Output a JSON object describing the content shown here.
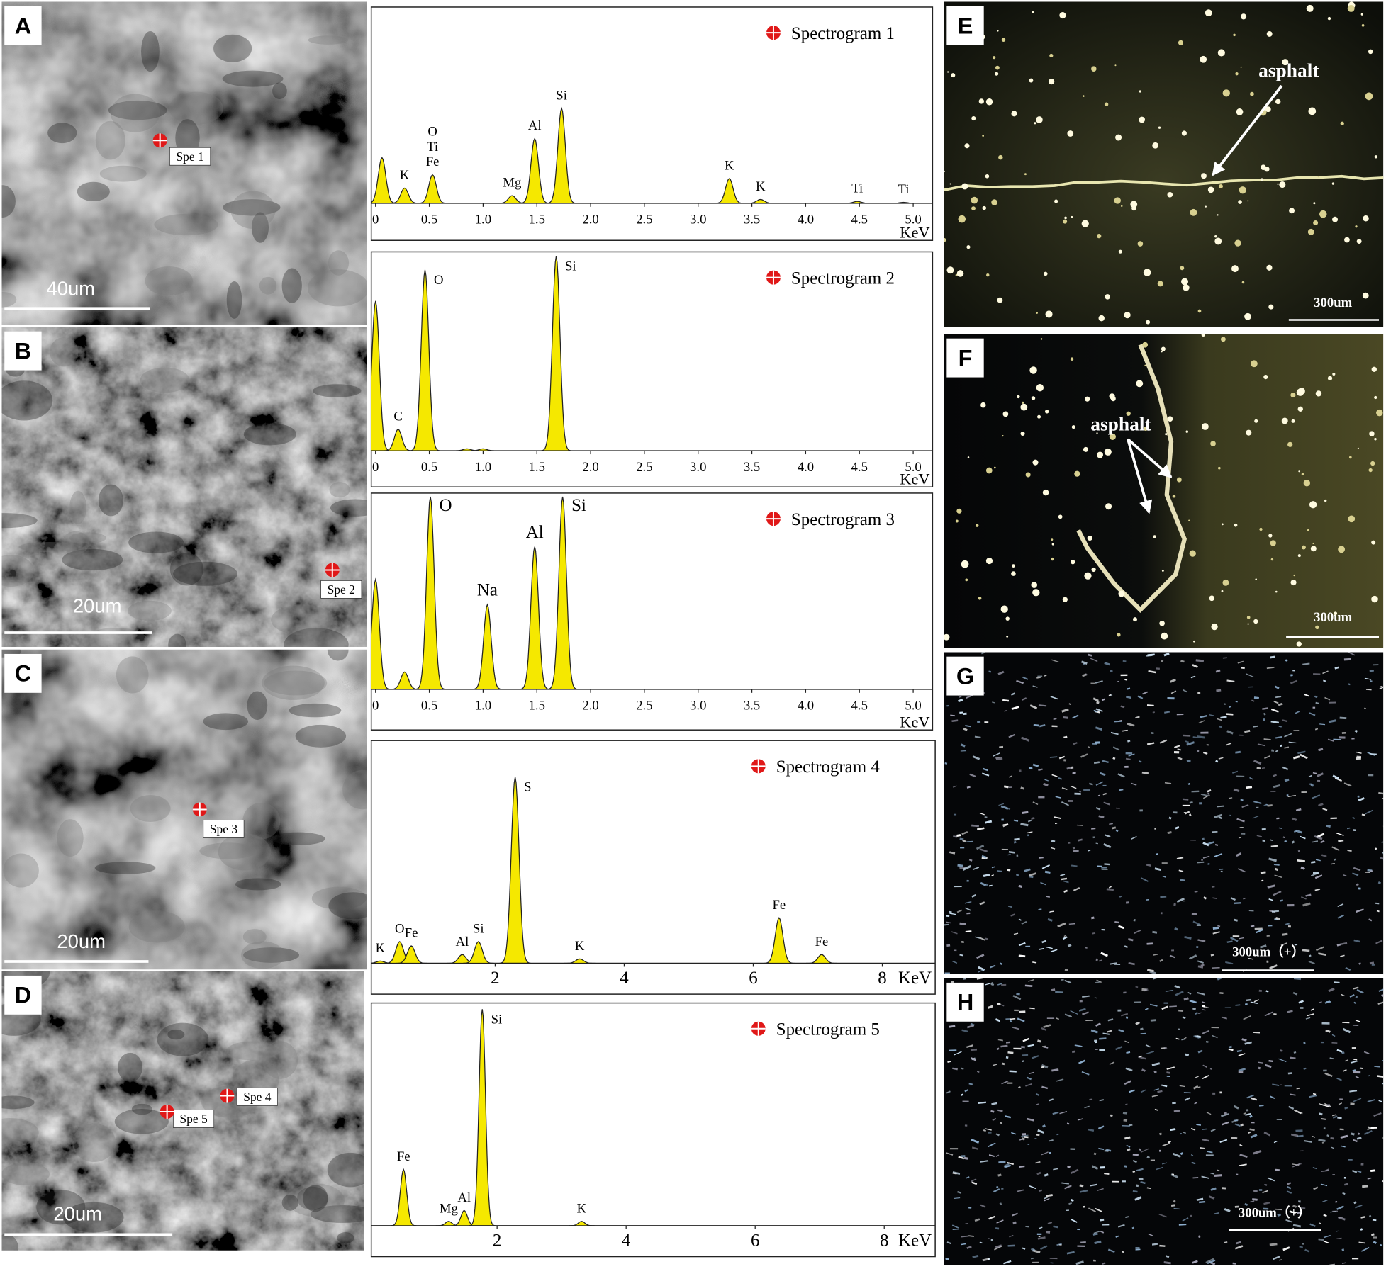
{
  "chart_data": [
    {
      "type": "spectrum",
      "title": "Spectrogram 1",
      "x_label": "KeV",
      "xlim": [
        -0.04,
        5.18
      ],
      "ylim": [
        0,
        100
      ],
      "xticks": [
        0,
        0.5,
        {
          "value": 1,
          "label": "1.0"
        },
        1.5,
        {
          "value": 2,
          "label": "2.0"
        },
        2.5,
        {
          "value": 3,
          "label": "3.0"
        },
        3.5,
        {
          "value": 4,
          "label": "4.0"
        },
        4.5,
        {
          "value": 5,
          "label": "5.0"
        }
      ],
      "peaks": [
        {
          "x": 0.06,
          "height": 24
        },
        {
          "x": 0.27,
          "height": 8,
          "labels": [
            "K"
          ]
        },
        {
          "x": 0.53,
          "height": 15,
          "labels": [
            "O",
            "Ti",
            "Fe"
          ]
        },
        {
          "x": 1.27,
          "height": 4,
          "labels": [
            "Mg"
          ]
        },
        {
          "x": 1.48,
          "height": 34,
          "labels": [
            "Al"
          ]
        },
        {
          "x": 1.73,
          "height": 50,
          "labels": [
            "Si"
          ]
        },
        {
          "x": 3.29,
          "height": 13,
          "labels": [
            "K"
          ]
        },
        {
          "x": 3.58,
          "height": 2,
          "labels": [
            "K"
          ]
        },
        {
          "x": 4.48,
          "height": 1,
          "labels": [
            "Ti"
          ]
        },
        {
          "x": 4.91,
          "height": 0.5,
          "labels": [
            "Ti"
          ]
        }
      ]
    },
    {
      "type": "spectrum",
      "title": "Spectrogram 2",
      "x_label": "KeV",
      "xlim": [
        -0.04,
        5.18
      ],
      "ylim": [
        0,
        100
      ],
      "xticks": [
        0,
        0.5,
        {
          "value": 1,
          "label": "1.0"
        },
        1.5,
        {
          "value": 2,
          "label": "2.0"
        },
        2.5,
        {
          "value": 3,
          "label": "3.0"
        },
        3.5,
        {
          "value": 4,
          "label": "4.0"
        },
        4.5,
        {
          "value": 5,
          "label": "5.0"
        }
      ],
      "peaks": [
        {
          "x": 0.0,
          "height": 77
        },
        {
          "x": 0.21,
          "height": 11,
          "labels": [
            "C"
          ]
        },
        {
          "x": 0.46,
          "height": 93,
          "labels": [
            "O"
          ]
        },
        {
          "x": 0.85,
          "height": 1
        },
        {
          "x": 1.0,
          "height": 1
        },
        {
          "x": 1.68,
          "height": 100,
          "labels": [
            "Si"
          ]
        }
      ]
    },
    {
      "type": "spectrum",
      "title": "Spectrogram 3",
      "x_label": "KeV",
      "xlim": [
        -0.04,
        5.18
      ],
      "ylim": [
        0,
        100
      ],
      "xticks": [
        0,
        0.5,
        {
          "value": 1,
          "label": "1.0"
        },
        1.5,
        {
          "value": 2,
          "label": "2.0"
        },
        2.5,
        {
          "value": 3,
          "label": "3.0"
        },
        3.5,
        {
          "value": 4,
          "label": "4.0"
        },
        4.5,
        {
          "value": 5,
          "label": "5.0"
        }
      ],
      "peaks": [
        {
          "x": 0.0,
          "height": 57
        },
        {
          "x": 0.27,
          "height": 9
        },
        {
          "x": 0.51,
          "height": 100,
          "labels": [
            "O"
          ]
        },
        {
          "x": 1.04,
          "height": 44,
          "labels": [
            "Na"
          ]
        },
        {
          "x": 1.48,
          "height": 74,
          "labels": [
            "Al"
          ]
        },
        {
          "x": 1.74,
          "height": 100,
          "labels": [
            "Si"
          ]
        }
      ]
    },
    {
      "type": "spectrum",
      "title": "Spectrogram 4",
      "x_label": "KeV",
      "xlim": [
        0.08,
        8.82
      ],
      "ylim": [
        0,
        100
      ],
      "xticks": [
        2,
        4,
        6,
        8
      ],
      "peaks": [
        {
          "x": 0.22,
          "height": 1,
          "labels": [
            "K"
          ]
        },
        {
          "x": 0.52,
          "height": 10,
          "labels": [
            "O"
          ]
        },
        {
          "x": 0.7,
          "height": 8,
          "labels": [
            "Fe"
          ]
        },
        {
          "x": 1.49,
          "height": 4,
          "labels": [
            "Al"
          ]
        },
        {
          "x": 1.74,
          "height": 10,
          "labels": [
            "Si"
          ]
        },
        {
          "x": 2.31,
          "height": 86,
          "labels": [
            "S"
          ]
        },
        {
          "x": 3.31,
          "height": 2,
          "labels": [
            "K"
          ]
        },
        {
          "x": 6.4,
          "height": 21,
          "labels": [
            "Fe"
          ]
        },
        {
          "x": 7.06,
          "height": 4,
          "labels": [
            "Fe"
          ]
        }
      ]
    },
    {
      "type": "spectrum",
      "title": "Spectrogram 5",
      "x_label": "KeV",
      "xlim": [
        0.05,
        8.79
      ],
      "ylim": [
        0,
        100
      ],
      "xticks": [
        2,
        4,
        6,
        8
      ],
      "peaks": [
        {
          "x": 0.55,
          "height": 26,
          "labels": [
            "Fe"
          ]
        },
        {
          "x": 1.25,
          "height": 2,
          "labels": [
            "Mg"
          ]
        },
        {
          "x": 1.49,
          "height": 7,
          "labels": [
            "Al"
          ]
        },
        {
          "x": 1.77,
          "height": 100,
          "labels": [
            "Si"
          ]
        },
        {
          "x": 3.31,
          "height": 2,
          "labels": [
            "K"
          ]
        }
      ]
    }
  ],
  "panels": [
    {
      "letter": "A",
      "spots": [
        "Spe 1"
      ],
      "scale_bar": "40um"
    },
    {
      "letter": "B",
      "spots": [
        "Spe 2"
      ],
      "scale_bar": "20um"
    },
    {
      "letter": "C",
      "spots": [
        "Spe 3"
      ],
      "scale_bar": "20um"
    },
    {
      "letter": "D",
      "spots": [
        "Spe 4",
        "Spe 5"
      ],
      "scale_bar": "20um"
    },
    {
      "letter": "E",
      "annotation": "asphalt",
      "scale_bar": "300um"
    },
    {
      "letter": "F",
      "annotation": "asphalt",
      "scale_bar": "300um"
    },
    {
      "letter": "G",
      "scale_bar": "300um（+）"
    },
    {
      "letter": "H",
      "scale_bar": "300um（+）"
    }
  ]
}
